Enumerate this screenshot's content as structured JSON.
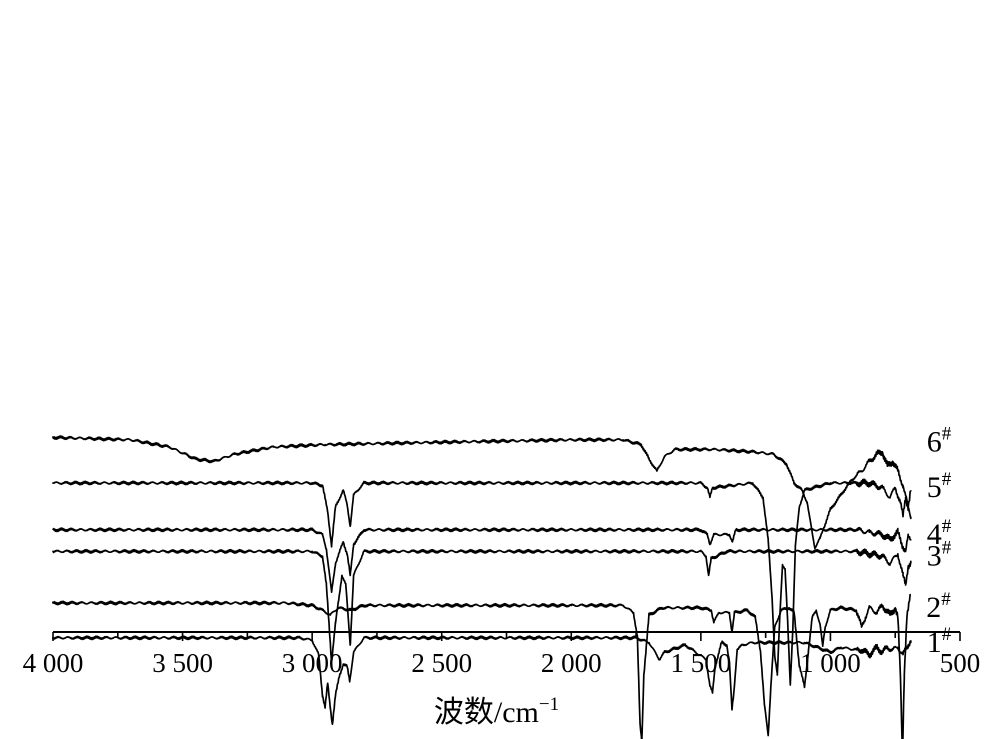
{
  "chart_data": {
    "type": "line",
    "title": "",
    "xlabel": "波数/cm",
    "xlabel_sup": "−1",
    "ylabel": "",
    "xlim": [
      4000,
      500
    ],
    "x_reversed": true,
    "grid": false,
    "legend": "labels at right end of each trace",
    "x_ticks": [
      {
        "value": 4000,
        "label": "4 000"
      },
      {
        "value": 3500,
        "label": "3 500"
      },
      {
        "value": 3000,
        "label": "3 000"
      },
      {
        "value": 2500,
        "label": "2 500"
      },
      {
        "value": 2000,
        "label": "2 000"
      },
      {
        "value": 1500,
        "label": "1 500"
      },
      {
        "value": 1000,
        "label": "1 000"
      },
      {
        "value": 500,
        "label": "500"
      }
    ],
    "series": [
      {
        "name": "6",
        "sup": "#",
        "offset": 9.4,
        "points": [
          [
            4000,
            0
          ],
          [
            3700,
            -0.1
          ],
          [
            3550,
            -0.4
          ],
          [
            3450,
            -0.9
          ],
          [
            3380,
            -1.0
          ],
          [
            3300,
            -0.7
          ],
          [
            3150,
            -0.4
          ],
          [
            2950,
            -0.3
          ],
          [
            2500,
            -0.2
          ],
          [
            2000,
            -0.1
          ],
          [
            1800,
            -0.1
          ],
          [
            1730,
            -0.3
          ],
          [
            1700,
            -0.9
          ],
          [
            1670,
            -1.4
          ],
          [
            1640,
            -0.8
          ],
          [
            1600,
            -0.5
          ],
          [
            1450,
            -0.5
          ],
          [
            1300,
            -0.6
          ],
          [
            1220,
            -0.7
          ],
          [
            1170,
            -1.1
          ],
          [
            1140,
            -1.9
          ],
          [
            1110,
            -2.2
          ],
          [
            1090,
            -2.7
          ],
          [
            1070,
            -4.0
          ],
          [
            1060,
            -4.6
          ],
          [
            1040,
            -4.2
          ],
          [
            1000,
            -3.0
          ],
          [
            960,
            -2.4
          ],
          [
            920,
            -1.8
          ],
          [
            880,
            -1.4
          ],
          [
            850,
            -1.0
          ],
          [
            820,
            -0.7
          ],
          [
            800,
            -0.6
          ],
          [
            780,
            -1.2
          ],
          [
            760,
            -1.0
          ],
          [
            740,
            -1.4
          ],
          [
            720,
            -2.0
          ],
          [
            700,
            -2.9
          ],
          [
            690,
            -3.3
          ]
        ]
      },
      {
        "name": "5",
        "sup": "#",
        "offset": 7.5,
        "points": [
          [
            4000,
            0
          ],
          [
            3000,
            0
          ],
          [
            2960,
            -0.1
          ],
          [
            2940,
            -1.2
          ],
          [
            2925,
            -2.6
          ],
          [
            2910,
            -1.0
          ],
          [
            2880,
            -0.3
          ],
          [
            2865,
            -0.9
          ],
          [
            2853,
            -1.8
          ],
          [
            2840,
            -0.5
          ],
          [
            2800,
            0
          ],
          [
            1500,
            0
          ],
          [
            1475,
            -0.2
          ],
          [
            1465,
            -0.6
          ],
          [
            1455,
            -0.2
          ],
          [
            1300,
            0
          ],
          [
            1260,
            -0.6
          ],
          [
            1240,
            -2.4
          ],
          [
            1225,
            -4.8
          ],
          [
            1215,
            -7.2
          ],
          [
            1205,
            -8.0
          ],
          [
            1195,
            -5.5
          ],
          [
            1185,
            -3.4
          ],
          [
            1175,
            -3.6
          ],
          [
            1165,
            -5.8
          ],
          [
            1155,
            -8.4
          ],
          [
            1145,
            -6.0
          ],
          [
            1135,
            -2.6
          ],
          [
            1120,
            -1.0
          ],
          [
            1100,
            -0.3
          ],
          [
            1000,
            0
          ],
          [
            850,
            0
          ],
          [
            800,
            -0.2
          ],
          [
            770,
            -0.6
          ],
          [
            750,
            -0.2
          ],
          [
            730,
            -0.8
          ],
          [
            720,
            -1.4
          ],
          [
            710,
            -0.6
          ],
          [
            700,
            -1.0
          ],
          [
            690,
            -0.3
          ]
        ]
      },
      {
        "name": "4",
        "sup": "#",
        "offset": 5.55,
        "points": [
          [
            4000,
            0
          ],
          [
            3000,
            0
          ],
          [
            2960,
            -0.2
          ],
          [
            2945,
            -0.8
          ],
          [
            2925,
            -2.6
          ],
          [
            2910,
            -1.4
          ],
          [
            2880,
            -0.5
          ],
          [
            2865,
            -1.0
          ],
          [
            2853,
            -1.9
          ],
          [
            2840,
            -0.6
          ],
          [
            2800,
            0
          ],
          [
            1500,
            0
          ],
          [
            1475,
            -0.2
          ],
          [
            1465,
            -0.6
          ],
          [
            1450,
            -0.2
          ],
          [
            1390,
            -0.2
          ],
          [
            1378,
            -0.5
          ],
          [
            1365,
            0
          ],
          [
            900,
            0
          ],
          [
            850,
            -0.1
          ],
          [
            800,
            -0.2
          ],
          [
            770,
            -0.4
          ],
          [
            740,
            -0.1
          ],
          [
            720,
            -0.7
          ],
          [
            710,
            -0.9
          ],
          [
            700,
            -0.3
          ],
          [
            690,
            -0.4
          ]
        ]
      },
      {
        "name": "3",
        "sup": "#",
        "offset": 4.65,
        "points": [
          [
            4000,
            0
          ],
          [
            3000,
            0
          ],
          [
            2960,
            -0.2
          ],
          [
            2945,
            -1.4
          ],
          [
            2925,
            -4.6
          ],
          [
            2910,
            -3.0
          ],
          [
            2885,
            -1.0
          ],
          [
            2870,
            -1.4
          ],
          [
            2853,
            -3.9
          ],
          [
            2840,
            -1.0
          ],
          [
            2800,
            0
          ],
          [
            1500,
            0
          ],
          [
            1480,
            -0.2
          ],
          [
            1470,
            -1.0
          ],
          [
            1460,
            -0.3
          ],
          [
            1400,
            0
          ],
          [
            900,
            0
          ],
          [
            850,
            -0.1
          ],
          [
            800,
            -0.2
          ],
          [
            770,
            -0.5
          ],
          [
            740,
            -0.1
          ],
          [
            720,
            -1.0
          ],
          [
            710,
            -1.4
          ],
          [
            700,
            -0.6
          ],
          [
            690,
            -0.5
          ]
        ]
      },
      {
        "name": "2",
        "sup": "#",
        "offset": 2.5,
        "points": [
          [
            4000,
            0
          ],
          [
            3100,
            0
          ],
          [
            3000,
            -0.1
          ],
          [
            2960,
            -0.3
          ],
          [
            2930,
            -0.5
          ],
          [
            2900,
            -0.2
          ],
          [
            2850,
            -0.3
          ],
          [
            2800,
            -0.1
          ],
          [
            2000,
            -0.1
          ],
          [
            1800,
            -0.1
          ],
          [
            1760,
            -0.4
          ],
          [
            1745,
            -1.4
          ],
          [
            1735,
            -5.0
          ],
          [
            1728,
            -5.8
          ],
          [
            1720,
            -3.0
          ],
          [
            1700,
            -0.5
          ],
          [
            1650,
            -0.2
          ],
          [
            1500,
            -0.2
          ],
          [
            1460,
            -0.3
          ],
          [
            1450,
            -0.8
          ],
          [
            1430,
            -0.4
          ],
          [
            1390,
            -0.4
          ],
          [
            1380,
            -1.2
          ],
          [
            1370,
            -0.4
          ],
          [
            1320,
            -0.3
          ],
          [
            1290,
            -0.6
          ],
          [
            1270,
            -2.0
          ],
          [
            1255,
            -4.2
          ],
          [
            1240,
            -5.5
          ],
          [
            1230,
            -3.5
          ],
          [
            1215,
            -1.0
          ],
          [
            1190,
            -0.3
          ],
          [
            1160,
            -0.2
          ],
          [
            1140,
            -0.4
          ],
          [
            1120,
            -2.6
          ],
          [
            1100,
            -3.5
          ],
          [
            1085,
            -2.0
          ],
          [
            1070,
            -0.6
          ],
          [
            1055,
            -0.3
          ],
          [
            1040,
            -0.9
          ],
          [
            1030,
            -1.8
          ],
          [
            1020,
            -1.0
          ],
          [
            1000,
            -0.3
          ],
          [
            960,
            -0.2
          ],
          [
            900,
            -0.3
          ],
          [
            880,
            -1.0
          ],
          [
            865,
            -0.6
          ],
          [
            850,
            -0.2
          ],
          [
            820,
            -0.4
          ],
          [
            800,
            -0.1
          ],
          [
            770,
            -0.5
          ],
          [
            750,
            -0.2
          ],
          [
            740,
            -0.6
          ],
          [
            730,
            -3.0
          ],
          [
            722,
            -6.3
          ],
          [
            715,
            -3.0
          ],
          [
            705,
            -0.6
          ],
          [
            700,
            -0.3
          ],
          [
            692,
            0.3
          ]
        ]
      },
      {
        "name": "1",
        "sup": "#",
        "offset": 1.05,
        "points": [
          [
            4000,
            0
          ],
          [
            3050,
            0
          ],
          [
            3000,
            -0.1
          ],
          [
            2975,
            -0.7
          ],
          [
            2960,
            -2.4
          ],
          [
            2950,
            -2.9
          ],
          [
            2940,
            -1.9
          ],
          [
            2930,
            -2.9
          ],
          [
            2922,
            -3.6
          ],
          [
            2910,
            -2.4
          ],
          [
            2895,
            -1.6
          ],
          [
            2880,
            -1.1
          ],
          [
            2865,
            -1.2
          ],
          [
            2855,
            -1.8
          ],
          [
            2840,
            -0.6
          ],
          [
            2800,
            0
          ],
          [
            1750,
            0
          ],
          [
            1700,
            -0.2
          ],
          [
            1660,
            -0.9
          ],
          [
            1640,
            -0.6
          ],
          [
            1560,
            -0.3
          ],
          [
            1480,
            -0.9
          ],
          [
            1465,
            -2.0
          ],
          [
            1455,
            -2.3
          ],
          [
            1445,
            -1.2
          ],
          [
            1420,
            -0.2
          ],
          [
            1400,
            -0.3
          ],
          [
            1390,
            -1.0
          ],
          [
            1380,
            -3.0
          ],
          [
            1372,
            -2.2
          ],
          [
            1360,
            -0.5
          ],
          [
            1340,
            -0.3
          ],
          [
            1300,
            -0.2
          ],
          [
            1100,
            -0.2
          ],
          [
            1050,
            -0.4
          ],
          [
            1000,
            -0.6
          ],
          [
            960,
            -0.4
          ],
          [
            900,
            -0.5
          ],
          [
            880,
            -0.5
          ],
          [
            850,
            -0.7
          ],
          [
            820,
            -0.4
          ],
          [
            800,
            -0.6
          ],
          [
            780,
            -0.4
          ],
          [
            760,
            -0.5
          ],
          [
            740,
            -0.4
          ],
          [
            720,
            -0.7
          ],
          [
            710,
            -0.5
          ],
          [
            700,
            -0.3
          ],
          [
            690,
            -0.1
          ]
        ]
      }
    ]
  }
}
